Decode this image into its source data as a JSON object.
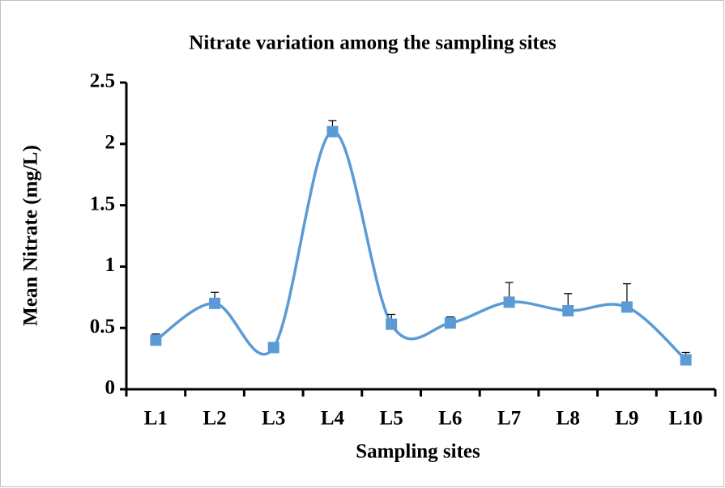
{
  "chart_data": {
    "type": "line",
    "title": "Nitrate variation among the sampling sites",
    "x_label": "Sampling sites",
    "y_label": "Mean Nitrate (mg/L)",
    "categories": [
      "L1",
      "L2",
      "L3",
      "L4",
      "L5",
      "L6",
      "L7",
      "L8",
      "L9",
      "L10"
    ],
    "values": [
      0.4,
      0.7,
      0.34,
      2.1,
      0.53,
      0.54,
      0.71,
      0.64,
      0.67,
      0.24
    ],
    "errors": [
      0.05,
      0.09,
      0.04,
      0.09,
      0.08,
      0.05,
      0.16,
      0.14,
      0.19,
      0.06
    ],
    "color": "#5b9bd5",
    "ylim": [
      0,
      2.5
    ],
    "yticks": [
      0,
      0.5,
      1,
      1.5,
      2,
      2.5
    ],
    "grid": false,
    "smooth": true
  }
}
